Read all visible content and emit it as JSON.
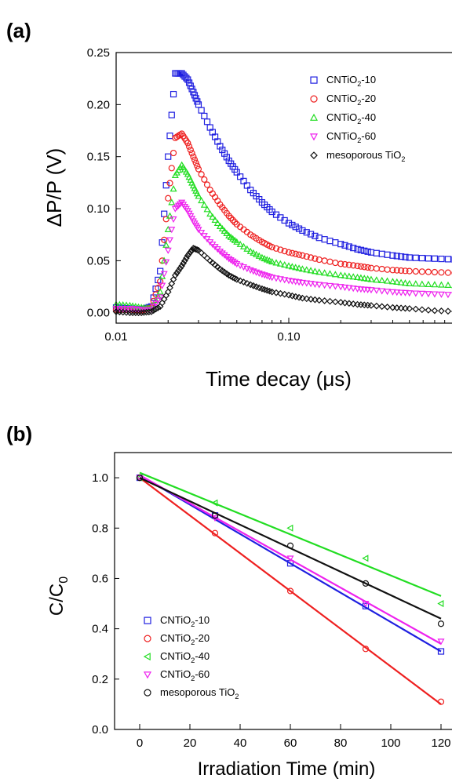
{
  "chart_data": [
    {
      "panel_label": "(a)",
      "type": "scatter",
      "xscale": "log",
      "xlabel": "Time decay (μs)",
      "ylabel": "ΔP/P (V)",
      "xlim": [
        0.01,
        1.0
      ],
      "ylim": [
        -0.01,
        0.25
      ],
      "xticks": [
        {
          "v": 0.01,
          "label": "0.01"
        },
        {
          "v": 0.1,
          "label": "0.10"
        }
      ],
      "yticks": [
        {
          "v": 0.0,
          "label": "0.00"
        },
        {
          "v": 0.05,
          "label": "0.05"
        },
        {
          "v": 0.1,
          "label": "0.10"
        },
        {
          "v": 0.15,
          "label": "0.15"
        },
        {
          "v": 0.2,
          "label": "0.20"
        },
        {
          "v": 0.25,
          "label": "0.25"
        }
      ],
      "legend_position": "top-right",
      "series": [
        {
          "name": "CNTiO",
          "sub": "2",
          "suffix": "-10",
          "color": "#1f1fe0",
          "marker": "square",
          "x": [
            0.01,
            0.012,
            0.014,
            0.016,
            0.018,
            0.02,
            0.022,
            0.024,
            0.026,
            0.028,
            0.03,
            0.035,
            0.04,
            0.045,
            0.05,
            0.06,
            0.07,
            0.08,
            0.1,
            0.12,
            0.15,
            0.2,
            0.25,
            0.3,
            0.4,
            0.5,
            0.7,
            1.0
          ],
          "y": [
            0.005,
            0.004,
            0.003,
            0.006,
            0.04,
            0.15,
            0.23,
            0.23,
            0.224,
            0.212,
            0.2,
            0.178,
            0.16,
            0.146,
            0.135,
            0.118,
            0.106,
            0.097,
            0.086,
            0.079,
            0.072,
            0.066,
            0.061,
            0.058,
            0.055,
            0.053,
            0.052,
            0.051
          ]
        },
        {
          "name": "CNTiO",
          "sub": "2",
          "suffix": "-20",
          "color": "#ee2020",
          "marker": "circle",
          "x": [
            0.01,
            0.012,
            0.014,
            0.016,
            0.018,
            0.02,
            0.022,
            0.024,
            0.026,
            0.028,
            0.03,
            0.035,
            0.04,
            0.045,
            0.05,
            0.06,
            0.07,
            0.08,
            0.1,
            0.12,
            0.15,
            0.2,
            0.25,
            0.3,
            0.4,
            0.5,
            0.7,
            1.0
          ],
          "y": [
            0.003,
            0.003,
            0.002,
            0.005,
            0.03,
            0.11,
            0.168,
            0.172,
            0.163,
            0.15,
            0.138,
            0.118,
            0.104,
            0.093,
            0.085,
            0.075,
            0.068,
            0.063,
            0.058,
            0.055,
            0.051,
            0.047,
            0.045,
            0.043,
            0.041,
            0.04,
            0.039,
            0.038
          ]
        },
        {
          "name": "CNTiO",
          "sub": "2",
          "suffix": "-40",
          "color": "#22dd22",
          "marker": "triangle-up",
          "x": [
            0.01,
            0.012,
            0.014,
            0.016,
            0.018,
            0.02,
            0.022,
            0.024,
            0.026,
            0.028,
            0.03,
            0.035,
            0.04,
            0.045,
            0.05,
            0.06,
            0.07,
            0.08,
            0.1,
            0.12,
            0.15,
            0.2,
            0.25,
            0.3,
            0.4,
            0.5,
            0.7,
            1.0
          ],
          "y": [
            0.008,
            0.007,
            0.005,
            0.004,
            0.02,
            0.08,
            0.132,
            0.142,
            0.133,
            0.122,
            0.112,
            0.095,
            0.083,
            0.074,
            0.068,
            0.059,
            0.053,
            0.049,
            0.045,
            0.042,
            0.039,
            0.036,
            0.034,
            0.032,
            0.03,
            0.028,
            0.027,
            0.026
          ]
        },
        {
          "name": "CNTiO",
          "sub": "2",
          "suffix": "-60",
          "color": "#ee22ee",
          "marker": "triangle-down",
          "x": [
            0.01,
            0.012,
            0.014,
            0.016,
            0.018,
            0.02,
            0.022,
            0.024,
            0.026,
            0.028,
            0.03,
            0.035,
            0.04,
            0.045,
            0.05,
            0.06,
            0.07,
            0.08,
            0.1,
            0.12,
            0.15,
            0.2,
            0.25,
            0.3,
            0.4,
            0.5,
            0.7,
            1.0
          ],
          "y": [
            0.004,
            0.004,
            0.003,
            0.003,
            0.015,
            0.06,
            0.1,
            0.106,
            0.098,
            0.088,
            0.08,
            0.068,
            0.059,
            0.052,
            0.047,
            0.041,
            0.037,
            0.034,
            0.031,
            0.029,
            0.027,
            0.025,
            0.023,
            0.022,
            0.02,
            0.019,
            0.018,
            0.017
          ]
        },
        {
          "name": "mesoporous TiO",
          "sub": "2",
          "suffix": "",
          "color": "#111111",
          "marker": "diamond",
          "x": [
            0.01,
            0.012,
            0.014,
            0.016,
            0.018,
            0.02,
            0.022,
            0.024,
            0.026,
            0.028,
            0.03,
            0.035,
            0.04,
            0.045,
            0.05,
            0.06,
            0.07,
            0.08,
            0.1,
            0.12,
            0.15,
            0.2,
            0.25,
            0.3,
            0.4,
            0.5,
            0.7,
            1.0
          ],
          "y": [
            0.001,
            0.0,
            0.0,
            0.001,
            0.006,
            0.02,
            0.036,
            0.045,
            0.055,
            0.062,
            0.06,
            0.05,
            0.042,
            0.036,
            0.032,
            0.027,
            0.023,
            0.02,
            0.017,
            0.014,
            0.012,
            0.01,
            0.008,
            0.007,
            0.005,
            0.004,
            0.002,
            0.001
          ]
        }
      ]
    },
    {
      "panel_label": "(b)",
      "type": "scatter",
      "xlabel": "Irradiation Time (min)",
      "ylabel": "C/C",
      "ylabel_sub": "0",
      "xlim": [
        -10,
        125
      ],
      "ylim": [
        0.0,
        1.1
      ],
      "xticks": [
        {
          "v": 0,
          "label": "0"
        },
        {
          "v": 20,
          "label": "20"
        },
        {
          "v": 40,
          "label": "40"
        },
        {
          "v": 60,
          "label": "60"
        },
        {
          "v": 80,
          "label": "80"
        },
        {
          "v": 100,
          "label": "100"
        },
        {
          "v": 120,
          "label": "120"
        }
      ],
      "yticks": [
        {
          "v": 0.0,
          "label": "0.0"
        },
        {
          "v": 0.2,
          "label": "0.2"
        },
        {
          "v": 0.4,
          "label": "0.4"
        },
        {
          "v": 0.6,
          "label": "0.6"
        },
        {
          "v": 0.8,
          "label": "0.8"
        },
        {
          "v": 1.0,
          "label": "1.0"
        }
      ],
      "legend_position": "bottom-left",
      "series": [
        {
          "name": "CNTiO",
          "sub": "2",
          "suffix": "-10",
          "color": "#1f1fe0",
          "marker": "square",
          "x": [
            0,
            30,
            60,
            90,
            120
          ],
          "y": [
            1.0,
            0.85,
            0.66,
            0.49,
            0.31
          ],
          "fit": [
            1.01,
            0.31
          ]
        },
        {
          "name": "CNTiO",
          "sub": "2",
          "suffix": "-20",
          "color": "#ee2020",
          "marker": "circle",
          "x": [
            0,
            30,
            60,
            90,
            120
          ],
          "y": [
            1.0,
            0.78,
            0.55,
            0.32,
            0.11
          ],
          "fit": [
            1.0,
            0.1
          ]
        },
        {
          "name": "CNTiO",
          "sub": "2",
          "suffix": "-40",
          "color": "#22dd22",
          "marker": "triangle-left",
          "x": [
            0,
            30,
            60,
            90,
            120
          ],
          "y": [
            1.0,
            0.9,
            0.8,
            0.68,
            0.5
          ],
          "fit": [
            1.02,
            0.53
          ]
        },
        {
          "name": "CNTiO",
          "sub": "2",
          "suffix": "-60",
          "color": "#ee22ee",
          "marker": "triangle-down",
          "x": [
            0,
            30,
            60,
            90,
            120
          ],
          "y": [
            1.0,
            0.84,
            0.68,
            0.5,
            0.35
          ],
          "fit": [
            1.01,
            0.34
          ]
        },
        {
          "name": "mesoporous TiO",
          "sub": "2",
          "suffix": "",
          "color": "#111111",
          "marker": "circle",
          "x": [
            0,
            30,
            60,
            90,
            120
          ],
          "y": [
            1.0,
            0.85,
            0.73,
            0.58,
            0.42
          ],
          "fit": [
            1.0,
            0.44
          ]
        }
      ]
    }
  ]
}
